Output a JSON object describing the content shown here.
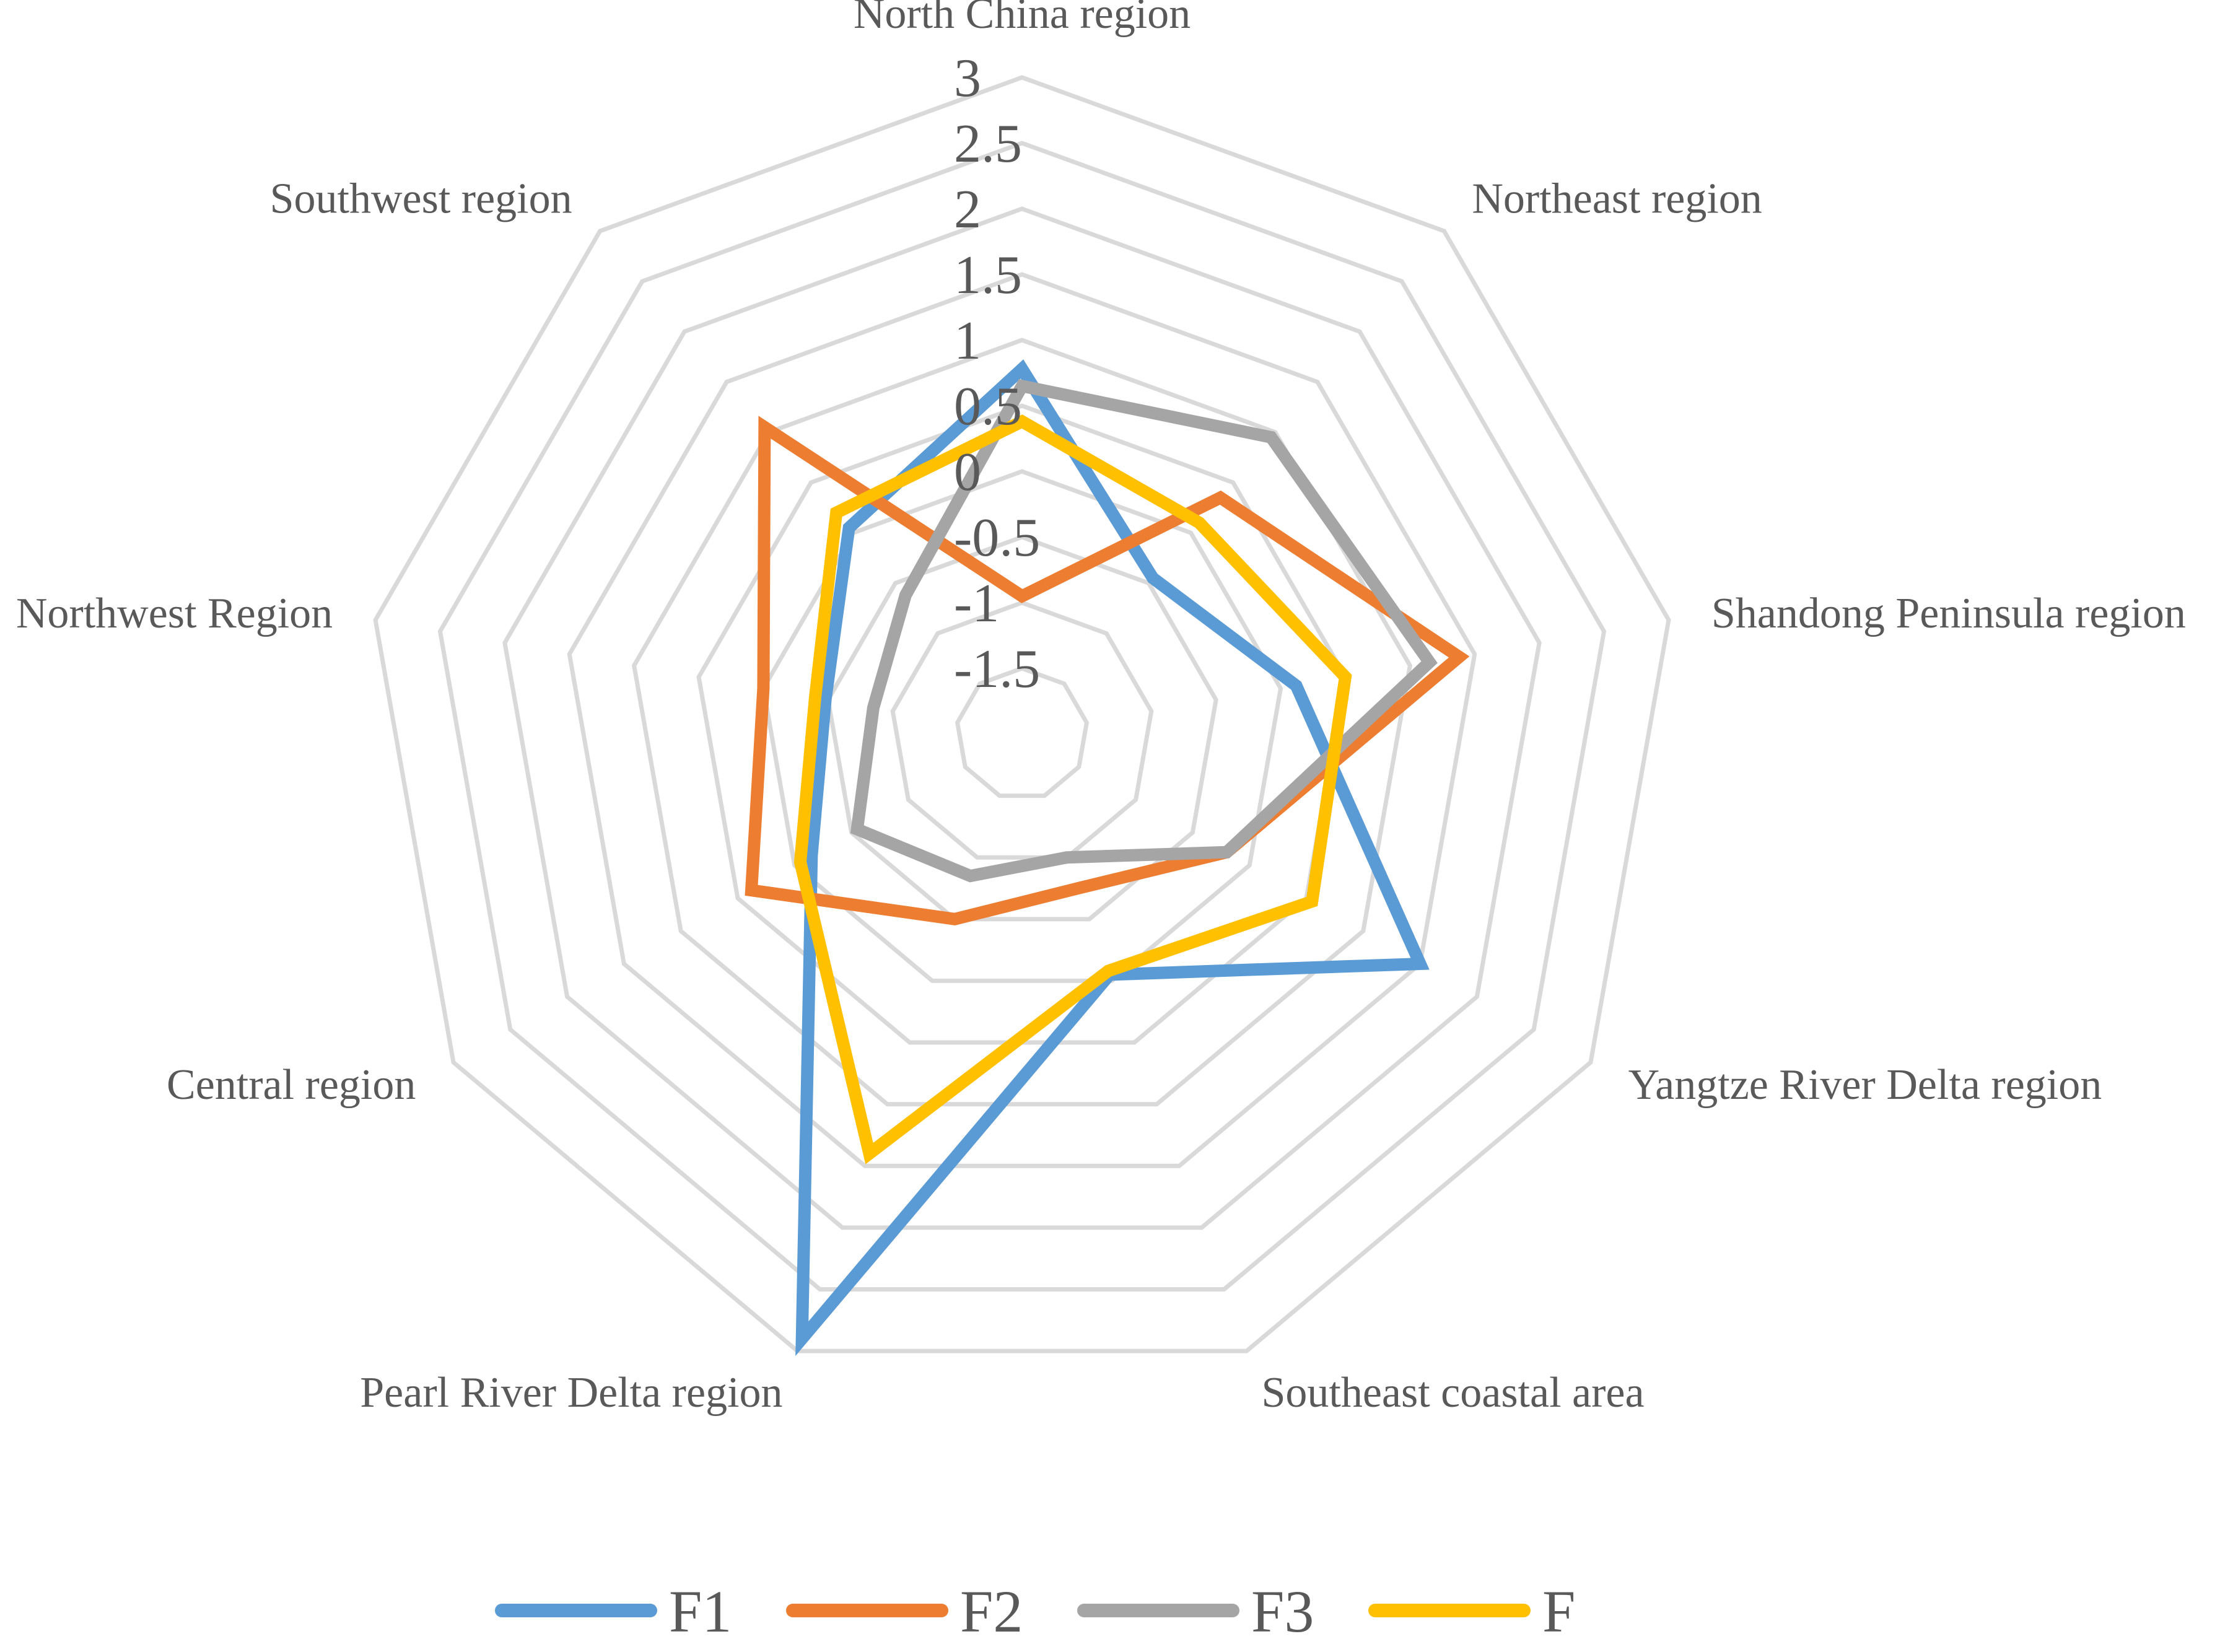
{
  "chart_data": {
    "type": "radar",
    "categories": [
      "North China region",
      "Northeast region",
      "Shandong Peninsula region",
      "Yangtze River Delta region",
      "Southeast coastal area",
      "Pearl River Delta region",
      "Central region",
      "Northwest Region",
      "Southwest region"
    ],
    "rlim": [
      -2,
      3
    ],
    "ticks": [
      -1.5,
      -1,
      -0.5,
      0,
      0.5,
      1,
      1.5,
      2,
      2.5,
      3
    ],
    "tick_labels": [
      "-1.5",
      "-1",
      "-0.5",
      "0",
      "0.5",
      "1",
      "1.5",
      "2",
      "2.5",
      "3"
    ],
    "grid": true,
    "legend_position": "bottom",
    "series": [
      {
        "name": "F1",
        "color": "#5b9bd5",
        "values": [
          0.78,
          -0.45,
          0.12,
          1.5,
          -0.05,
          2.9,
          -0.15,
          -0.48,
          0.05
        ]
      },
      {
        "name": "F2",
        "color": "#ed7d31",
        "values": [
          -0.95,
          0.35,
          1.38,
          -0.2,
          -0.75,
          -0.5,
          0.38,
          0.0,
          1.05
        ]
      },
      {
        "name": "F3",
        "color": "#a5a5a5",
        "values": [
          0.65,
          0.95,
          1.15,
          -0.2,
          -1.0,
          -0.85,
          -0.55,
          -0.85,
          -0.62
        ]
      },
      {
        "name": "F",
        "color": "#ffc000",
        "values": [
          0.38,
          0.1,
          0.5,
          0.55,
          -0.08,
          1.4,
          -0.05,
          -0.4,
          0.2
        ]
      }
    ]
  }
}
